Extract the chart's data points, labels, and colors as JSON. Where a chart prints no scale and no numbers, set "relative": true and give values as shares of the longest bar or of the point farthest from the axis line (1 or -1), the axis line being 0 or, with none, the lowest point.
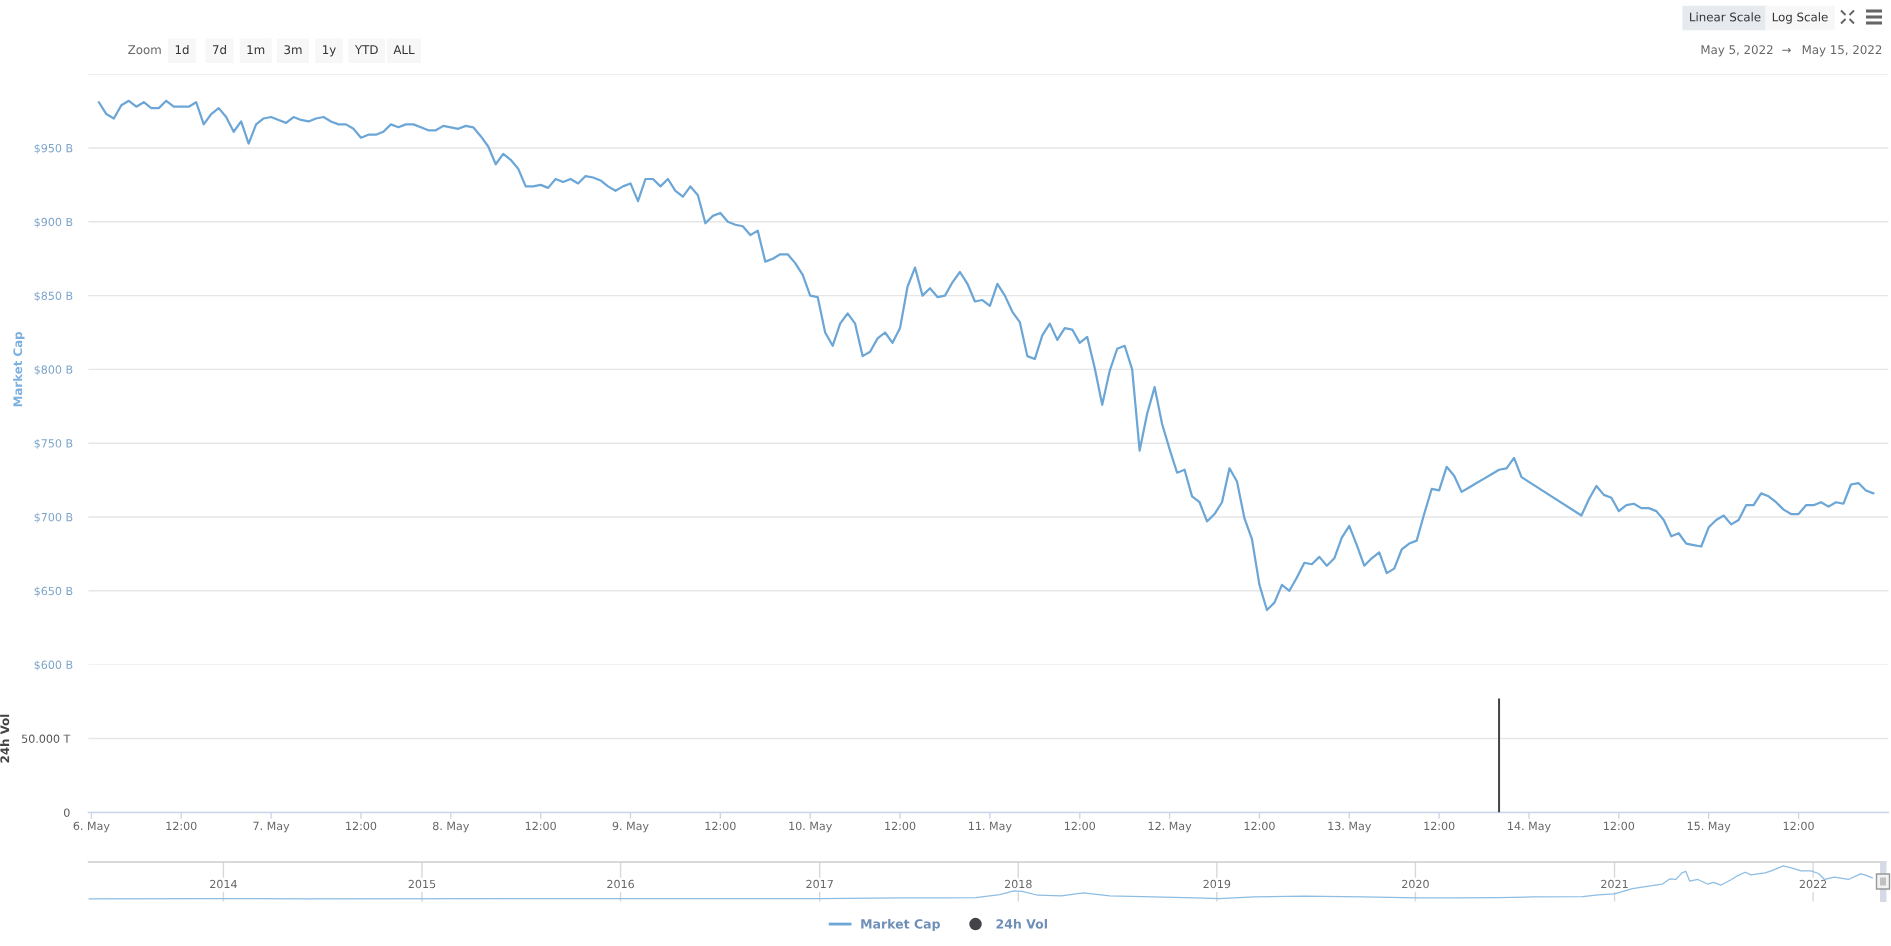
{
  "chart_data": [
    {
      "type": "line",
      "ylabel": "Market Cap",
      "legend": "bottom",
      "grid": "y",
      "tick_labels": "y",
      "xlim": [
        "2022-05-05T23:36",
        "2022-05-16T00:00"
      ],
      "ylim": [
        600,
        1000
      ],
      "yticks": [
        {
          "value": 600,
          "label": "$600 B"
        },
        {
          "value": 650,
          "label": "$650 B"
        },
        {
          "value": 700,
          "label": "$700 B"
        },
        {
          "value": 750,
          "label": "$750 B"
        },
        {
          "value": 800,
          "label": "$800 B"
        },
        {
          "value": 850,
          "label": "$850 B"
        },
        {
          "value": 900,
          "label": "$900 B"
        },
        {
          "value": 950,
          "label": "$950 B"
        },
        {
          "value": 1000,
          "label": null
        }
      ],
      "annotations": [
        "Zoom",
        "1d",
        "7d",
        "1m",
        "3m",
        "1y",
        "YTD",
        "ALL",
        "Linear Scale",
        "Log Scale",
        "May 5, 2022",
        "→",
        "May 15, 2022"
      ],
      "x": [
        "2022-05-06T01:00",
        "2022-05-06T02:00",
        "2022-05-06T03:00",
        "2022-05-06T04:00",
        "2022-05-06T05:00",
        "2022-05-06T06:00",
        "2022-05-06T07:00",
        "2022-05-06T08:00",
        "2022-05-06T09:00",
        "2022-05-06T10:00",
        "2022-05-06T11:00",
        "2022-05-06T12:00",
        "2022-05-06T13:00",
        "2022-05-06T14:00",
        "2022-05-06T15:00",
        "2022-05-06T16:00",
        "2022-05-06T17:00",
        "2022-05-06T18:00",
        "2022-05-06T19:00",
        "2022-05-06T20:00",
        "2022-05-06T21:00",
        "2022-05-06T22:00",
        "2022-05-06T23:00",
        "2022-05-07T00:00",
        "2022-05-07T01:00",
        "2022-05-07T02:00",
        "2022-05-07T03:00",
        "2022-05-07T04:00",
        "2022-05-07T05:00",
        "2022-05-07T06:00",
        "2022-05-07T07:00",
        "2022-05-07T08:00",
        "2022-05-07T09:00",
        "2022-05-07T10:00",
        "2022-05-07T11:00",
        "2022-05-07T12:00",
        "2022-05-07T13:00",
        "2022-05-07T14:00",
        "2022-05-07T15:00",
        "2022-05-07T16:00",
        "2022-05-07T17:00",
        "2022-05-07T18:00",
        "2022-05-07T19:00",
        "2022-05-07T20:00",
        "2022-05-07T21:00",
        "2022-05-07T22:00",
        "2022-05-07T23:00",
        "2022-05-08T00:00",
        "2022-05-08T01:00",
        "2022-05-08T02:00",
        "2022-05-08T03:00",
        "2022-05-08T04:00",
        "2022-05-08T05:00",
        "2022-05-08T06:00",
        "2022-05-08T07:00",
        "2022-05-08T08:00",
        "2022-05-08T09:00",
        "2022-05-08T10:00",
        "2022-05-08T11:00",
        "2022-05-08T12:00",
        "2022-05-08T13:00",
        "2022-05-08T14:00",
        "2022-05-08T15:00",
        "2022-05-08T16:00",
        "2022-05-08T17:00",
        "2022-05-08T18:00",
        "2022-05-08T19:00",
        "2022-05-08T20:00",
        "2022-05-08T21:00",
        "2022-05-08T22:00",
        "2022-05-08T23:00",
        "2022-05-09T00:00",
        "2022-05-09T01:00",
        "2022-05-09T02:00",
        "2022-05-09T03:00",
        "2022-05-09T04:00",
        "2022-05-09T05:00",
        "2022-05-09T06:00",
        "2022-05-09T07:00",
        "2022-05-09T08:00",
        "2022-05-09T09:00",
        "2022-05-09T10:00",
        "2022-05-09T11:00",
        "2022-05-09T12:00",
        "2022-05-09T13:00",
        "2022-05-09T14:00",
        "2022-05-09T15:00",
        "2022-05-09T16:00",
        "2022-05-09T17:00",
        "2022-05-09T18:00",
        "2022-05-09T19:00",
        "2022-05-09T20:00",
        "2022-05-09T21:00",
        "2022-05-09T22:00",
        "2022-05-09T23:00",
        "2022-05-10T00:00",
        "2022-05-10T01:00",
        "2022-05-10T02:00",
        "2022-05-10T03:00",
        "2022-05-10T04:00",
        "2022-05-10T05:00",
        "2022-05-10T06:00",
        "2022-05-10T07:00",
        "2022-05-10T08:00",
        "2022-05-10T09:00",
        "2022-05-10T10:00",
        "2022-05-10T11:00",
        "2022-05-10T12:00",
        "2022-05-10T13:00",
        "2022-05-10T14:00",
        "2022-05-10T15:00",
        "2022-05-10T16:00",
        "2022-05-10T17:00",
        "2022-05-10T18:00",
        "2022-05-10T19:00",
        "2022-05-10T20:00",
        "2022-05-10T21:00",
        "2022-05-10T22:00",
        "2022-05-10T23:00",
        "2022-05-11T00:00",
        "2022-05-11T01:00",
        "2022-05-11T02:00",
        "2022-05-11T03:00",
        "2022-05-11T04:00",
        "2022-05-11T05:00",
        "2022-05-11T06:00",
        "2022-05-11T07:00",
        "2022-05-11T08:00",
        "2022-05-11T09:00",
        "2022-05-11T10:00",
        "2022-05-11T11:00",
        "2022-05-11T12:00",
        "2022-05-11T13:00",
        "2022-05-11T14:00",
        "2022-05-11T15:00",
        "2022-05-11T16:00",
        "2022-05-11T17:00",
        "2022-05-11T18:00",
        "2022-05-11T19:00",
        "2022-05-11T20:00",
        "2022-05-11T21:00",
        "2022-05-11T22:00",
        "2022-05-11T23:00",
        "2022-05-12T00:00",
        "2022-05-12T01:00",
        "2022-05-12T02:00",
        "2022-05-12T03:00",
        "2022-05-12T04:00",
        "2022-05-12T05:00",
        "2022-05-12T06:00",
        "2022-05-12T07:00",
        "2022-05-12T08:00",
        "2022-05-12T09:00",
        "2022-05-12T10:00",
        "2022-05-12T11:00",
        "2022-05-12T12:00",
        "2022-05-12T13:00",
        "2022-05-12T14:00",
        "2022-05-12T15:00",
        "2022-05-12T16:00",
        "2022-05-12T17:00",
        "2022-05-12T18:00",
        "2022-05-12T19:00",
        "2022-05-12T20:00",
        "2022-05-12T21:00",
        "2022-05-12T22:00",
        "2022-05-12T23:00",
        "2022-05-13T00:00",
        "2022-05-13T01:00",
        "2022-05-13T02:00",
        "2022-05-13T03:00",
        "2022-05-13T04:00",
        "2022-05-13T05:00",
        "2022-05-13T06:00",
        "2022-05-13T07:00",
        "2022-05-13T08:00",
        "2022-05-13T09:00",
        "2022-05-13T10:00",
        "2022-05-13T11:00",
        "2022-05-13T12:00",
        "2022-05-13T13:00",
        "2022-05-13T14:00",
        "2022-05-13T15:00",
        "2022-05-13T16:00",
        "2022-05-13T17:00",
        "2022-05-13T18:00",
        "2022-05-13T19:00",
        "2022-05-13T20:00",
        "2022-05-13T21:00",
        "2022-05-13T22:00",
        "2022-05-13T23:00",
        "2022-05-14T07:00",
        "2022-05-14T08:00",
        "2022-05-14T09:00",
        "2022-05-14T10:00",
        "2022-05-14T11:00",
        "2022-05-14T12:00",
        "2022-05-14T13:00",
        "2022-05-14T14:00",
        "2022-05-14T15:00",
        "2022-05-14T16:00",
        "2022-05-14T17:00",
        "2022-05-14T18:00",
        "2022-05-14T19:00",
        "2022-05-14T20:00",
        "2022-05-14T21:00",
        "2022-05-14T22:00",
        "2022-05-14T23:00",
        "2022-05-15T00:00",
        "2022-05-15T01:00",
        "2022-05-15T02:00",
        "2022-05-15T03:00",
        "2022-05-15T04:00",
        "2022-05-15T05:00",
        "2022-05-15T06:00",
        "2022-05-15T07:00",
        "2022-05-15T08:00",
        "2022-05-15T09:00",
        "2022-05-15T10:00",
        "2022-05-15T11:00",
        "2022-05-15T12:00",
        "2022-05-15T13:00",
        "2022-05-15T14:00",
        "2022-05-15T15:00",
        "2022-05-15T16:00",
        "2022-05-15T17:00",
        "2022-05-15T18:00",
        "2022-05-15T19:00",
        "2022-05-15T20:00",
        "2022-05-15T21:00",
        "2022-05-15T22:00"
      ],
      "series": [
        {
          "name": "Market Cap",
          "color": "#6ba6d6",
          "values": [
            981,
            973,
            970,
            979,
            982,
            978,
            981,
            977,
            977,
            982,
            978,
            978,
            978,
            981,
            966,
            973,
            977,
            971,
            961,
            968,
            953,
            966,
            970,
            971,
            969,
            967,
            971,
            969,
            968,
            970,
            971,
            968,
            966,
            966,
            963,
            957,
            959,
            959,
            961,
            966,
            964,
            966,
            966,
            964,
            962,
            962,
            965,
            964,
            963,
            965,
            964,
            958,
            951,
            939,
            946,
            942,
            936,
            924,
            924,
            925,
            923,
            929,
            927,
            929,
            926,
            931,
            930,
            928,
            924,
            921,
            924,
            926,
            914,
            929,
            929,
            924,
            929,
            921,
            917,
            924,
            918,
            899,
            904,
            906,
            900,
            898,
            897,
            891,
            894,
            873,
            875,
            878,
            878,
            872,
            864,
            850,
            849,
            825,
            816,
            831,
            838,
            831,
            809,
            812,
            821,
            825,
            818,
            828,
            856,
            869,
            850,
            855,
            849,
            850,
            859,
            866,
            858,
            846,
            847,
            843,
            858,
            850,
            839,
            832,
            809,
            807,
            823,
            831,
            820,
            828,
            827,
            818,
            822,
            801,
            776,
            799,
            814,
            816,
            800,
            745,
            770,
            788,
            763,
            746,
            730,
            732,
            714,
            710,
            697,
            702,
            710,
            733,
            724,
            699,
            685,
            654,
            637,
            642,
            654,
            650,
            659,
            669,
            668,
            673,
            667,
            672,
            686,
            694,
            681,
            667,
            672,
            676,
            662,
            665,
            678,
            682,
            684,
            702,
            719,
            718,
            734,
            728,
            717,
            720,
            723,
            726,
            729,
            732,
            733,
            740,
            727,
            701,
            712,
            721,
            715,
            713,
            704,
            708,
            709,
            706,
            706,
            704,
            698,
            687,
            689,
            682,
            681,
            680,
            693,
            698,
            701,
            695,
            698,
            708,
            708,
            716,
            714,
            710,
            705,
            702,
            702,
            708,
            708,
            710,
            707,
            710,
            709,
            722,
            723,
            718,
            716
          ]
        }
      ]
    },
    {
      "type": "bar",
      "ylabel": "24h Vol",
      "legend": "bottom",
      "grid": "y",
      "xlim": [
        "2022-05-05T23:36",
        "2022-05-16T00:00"
      ],
      "ylim": [
        0,
        100
      ],
      "yticks": [
        0,
        {
          "value": 50,
          "label": "50.000 T"
        }
      ],
      "xticks": [
        {
          "value": "2022-05-06T00:00",
          "label": "6. May"
        },
        {
          "value": "2022-05-06T12:00",
          "label": "12:00"
        },
        {
          "value": "2022-05-07T00:00",
          "label": "7. May"
        },
        {
          "value": "2022-05-07T12:00",
          "label": "12:00"
        },
        {
          "value": "2022-05-08T00:00",
          "label": "8. May"
        },
        {
          "value": "2022-05-08T12:00",
          "label": "12:00"
        },
        {
          "value": "2022-05-09T00:00",
          "label": "9. May"
        },
        {
          "value": "2022-05-09T12:00",
          "label": "12:00"
        },
        {
          "value": "2022-05-10T00:00",
          "label": "10. May"
        },
        {
          "value": "2022-05-10T12:00",
          "label": "12:00"
        },
        {
          "value": "2022-05-11T00:00",
          "label": "11. May"
        },
        {
          "value": "2022-05-11T12:00",
          "label": "12:00"
        },
        {
          "value": "2022-05-12T00:00",
          "label": "12. May"
        },
        {
          "value": "2022-05-12T12:00",
          "label": "12:00"
        },
        {
          "value": "2022-05-13T00:00",
          "label": "13. May"
        },
        {
          "value": "2022-05-13T12:00",
          "label": "12:00"
        },
        {
          "value": "2022-05-14T00:00",
          "label": "14. May"
        },
        {
          "value": "2022-05-14T12:00",
          "label": "12:00"
        },
        {
          "value": "2022-05-15T00:00",
          "label": "15. May"
        },
        {
          "value": "2022-05-15T12:00",
          "label": "12:00"
        }
      ],
      "x": [
        "2022-05-13T20:00"
      ],
      "series": [
        {
          "name": "24h Vol",
          "color": "#434348",
          "values": [
            77
          ]
        }
      ]
    },
    {
      "type": "line",
      "relative": true,
      "grid": "x",
      "tick_labels": "x",
      "xlim": [
        "2013-04-28T00:00",
        "2022-05-15T00:00"
      ],
      "xticks": [
        {
          "value": "2014-01-01T00:00",
          "label": "2014"
        },
        {
          "value": "2015-01-01T00:00",
          "label": "2015"
        },
        {
          "value": "2016-01-01T00:00",
          "label": "2016"
        },
        {
          "value": "2017-01-01T00:00",
          "label": "2017"
        },
        {
          "value": "2018-01-01T00:00",
          "label": "2018"
        },
        {
          "value": "2019-01-01T00:00",
          "label": "2019"
        },
        {
          "value": "2020-01-01T00:00",
          "label": "2020"
        },
        {
          "value": "2021-01-01T00:00",
          "label": "2021"
        },
        {
          "value": "2022-01-01T00:00",
          "label": "2022"
        }
      ],
      "x": [
        "2013-04-28T00:00",
        "2013-12-01T00:00",
        "2014-06-01T00:00",
        "2017-01-01T00:00",
        "2017-06-01T00:00",
        "2017-08-10T00:00",
        "2017-10-15T00:00",
        "2017-11-28T00:00",
        "2017-12-24T00:00",
        "2018-01-08T00:00",
        "2018-02-06T00:00",
        "2018-03-21T00:00",
        "2018-05-01T00:00",
        "2018-06-18T00:00",
        "2018-09-06T00:00",
        "2018-11-22T00:00",
        "2019-01-05T00:00",
        "2019-03-10T00:00",
        "2019-06-10T00:00",
        "2019-09-27T00:00",
        "2020-01-05T00:00",
        "2020-03-14T00:00",
        "2020-06-03T00:00",
        "2020-08-04T00:00",
        "2020-11-03T00:00",
        "2020-12-02T00:00",
        "2021-01-01T00:00",
        "2021-02-03T00:00",
        "2021-02-21T00:00",
        "2021-03-11T00:00",
        "2021-03-30T00:00",
        "2021-04-13T00:00",
        "2021-04-24T00:00",
        "2021-05-05T00:00",
        "2021-05-12T00:00",
        "2021-05-19T00:00",
        "2021-06-03T00:00",
        "2021-06-21T00:00",
        "2021-07-02T00:00",
        "2021-07-16T00:00",
        "2021-08-04T00:00",
        "2021-08-15T00:00",
        "2021-08-29T00:00",
        "2021-09-09T00:00",
        "2021-09-24T00:00",
        "2021-10-05T00:00",
        "2021-10-16T00:00",
        "2021-11-07T00:00",
        "2021-11-22T00:00",
        "2021-12-10T00:00",
        "2021-12-28T00:00",
        "2022-01-11T00:00",
        "2022-01-22T00:00",
        "2022-02-09T00:00",
        "2022-03-07T00:00",
        "2022-03-29T00:00",
        "2022-04-06T00:00",
        "2022-04-20T00:00"
      ],
      "series": [
        {
          "color": "#8dbde3",
          "values": [
            0,
            0.01,
            0,
            0.01,
            0.03,
            0.03,
            0.04,
            0.13,
            0.24,
            0.23,
            0.11,
            0.09,
            0.18,
            0.09,
            0.06,
            0.03,
            0.01,
            0.06,
            0.08,
            0.06,
            0.03,
            0.03,
            0.04,
            0.06,
            0.07,
            0.12,
            0.15,
            0.31,
            0.36,
            0.4,
            0.45,
            0.61,
            0.59,
            0.79,
            0.84,
            0.54,
            0.59,
            0.45,
            0.5,
            0.42,
            0.59,
            0.7,
            0.81,
            0.73,
            0.77,
            0.79,
            0.85,
            1,
            0.94,
            0.85,
            0.85,
            0.77,
            0.59,
            0.66,
            0.59,
            0.76,
            0.73,
            0.64
          ]
        }
      ]
    }
  ]
}
